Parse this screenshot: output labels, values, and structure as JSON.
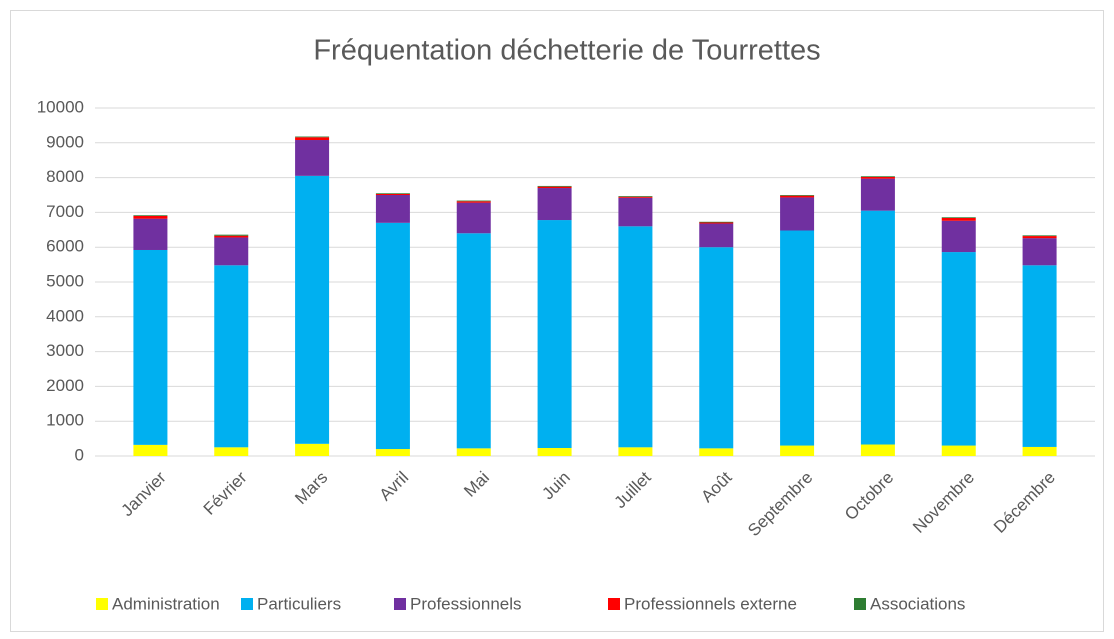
{
  "chart_data": {
    "type": "stacked_bar",
    "title": "Fréquentation déchetterie de Tourrettes",
    "categories": [
      "Janvier",
      "Février",
      "Mars",
      "Avril",
      "Mai",
      "Juin",
      "Juillet",
      "Août",
      "Septembre",
      "Octobre",
      "Novembre",
      "Décembre"
    ],
    "series": [
      {
        "name": "Administration",
        "color": "#ffff00",
        "values": [
          320,
          250,
          350,
          200,
          220,
          230,
          250,
          220,
          300,
          330,
          300,
          260
        ]
      },
      {
        "name": "Particuliers",
        "color": "#00b0f0",
        "values": [
          5600,
          5230,
          7700,
          6500,
          6180,
          6550,
          6350,
          5780,
          6180,
          6720,
          5560,
          5220
        ]
      },
      {
        "name": "Professionnels",
        "color": "#7030a0",
        "values": [
          900,
          800,
          1030,
          800,
          880,
          920,
          820,
          680,
          950,
          920,
          900,
          780
        ]
      },
      {
        "name": "Professionnels externe",
        "color": "#ff0000",
        "values": [
          80,
          50,
          80,
          30,
          40,
          40,
          30,
          30,
          50,
          50,
          80,
          60
        ]
      },
      {
        "name": "Associations",
        "color": "#2e7d32",
        "values": [
          20,
          30,
          20,
          20,
          20,
          20,
          20,
          20,
          20,
          20,
          20,
          20
        ]
      }
    ],
    "ylim": [
      0,
      10000
    ],
    "yticks": [
      0,
      1000,
      2000,
      3000,
      4000,
      5000,
      6000,
      7000,
      8000,
      9000,
      10000
    ],
    "grid": true,
    "legend": "bottom"
  }
}
